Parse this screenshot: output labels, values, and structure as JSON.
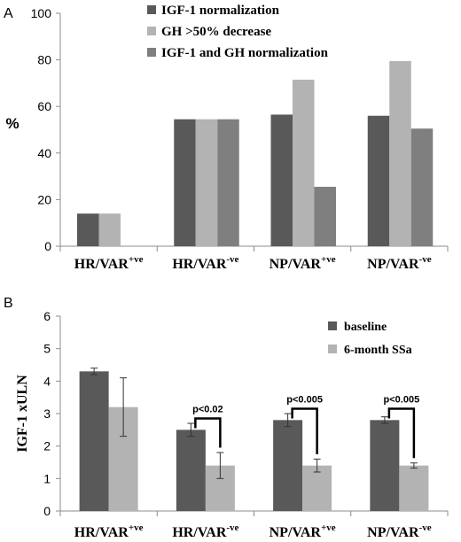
{
  "figure": {
    "colors": {
      "dark": "#595959",
      "light": "#b3b3b3",
      "mid": "#7f7f7f",
      "axis": "#8c8c8c",
      "text": "#000000"
    }
  },
  "chart_data": [
    {
      "panel_label": "A",
      "type": "bar",
      "ylabel": "%",
      "xlabel": "",
      "ylim": [
        0,
        100
      ],
      "yticks": [
        0,
        20,
        40,
        60,
        80,
        100
      ],
      "categories": [
        {
          "base": "HR/VAR",
          "sup": "+ve"
        },
        {
          "base": "HR/VAR",
          "sup": "-ve"
        },
        {
          "base": "NP/VAR",
          "sup": "+ve"
        },
        {
          "base": "NP/VAR",
          "sup": "-ve"
        }
      ],
      "series": [
        {
          "name": "IGF-1 normalization",
          "color": "#595959",
          "values": [
            14,
            54.5,
            56.5,
            56
          ]
        },
        {
          "name": "GH >50% decrease",
          "color": "#b3b3b3",
          "values": [
            14,
            54.5,
            71.5,
            79.5
          ]
        },
        {
          "name": "IGF-1 and GH normalization",
          "color": "#7f7f7f",
          "values": [
            null,
            54.5,
            25.5,
            50.5
          ]
        }
      ],
      "legend_position": "top"
    },
    {
      "panel_label": "B",
      "type": "bar",
      "ylabel": "IGF-1 xULN",
      "xlabel": "",
      "ylim": [
        0,
        6
      ],
      "yticks": [
        0,
        1,
        2,
        3,
        4,
        5,
        6
      ],
      "categories": [
        {
          "base": "HR/VAR",
          "sup": "+ve"
        },
        {
          "base": "HR/VAR",
          "sup": "-ve"
        },
        {
          "base": "NP/VAR",
          "sup": "+ve"
        },
        {
          "base": "NP/VAR",
          "sup": "-ve"
        }
      ],
      "series": [
        {
          "name": "baseline",
          "color": "#595959",
          "values": [
            4.3,
            2.5,
            2.8,
            2.8
          ],
          "errors": [
            0.1,
            0.2,
            0.2,
            0.1
          ]
        },
        {
          "name": "6-month SSa",
          "color": "#b3b3b3",
          "values": [
            3.2,
            1.4,
            1.4,
            1.4
          ],
          "errors": [
            0.9,
            0.4,
            0.2,
            0.08
          ]
        }
      ],
      "annotations": [
        {
          "category_index": 1,
          "text": "p<0.02"
        },
        {
          "category_index": 2,
          "text": "p<0.005"
        },
        {
          "category_index": 3,
          "text": "p<0.005"
        }
      ],
      "legend_position": "top-right"
    }
  ]
}
